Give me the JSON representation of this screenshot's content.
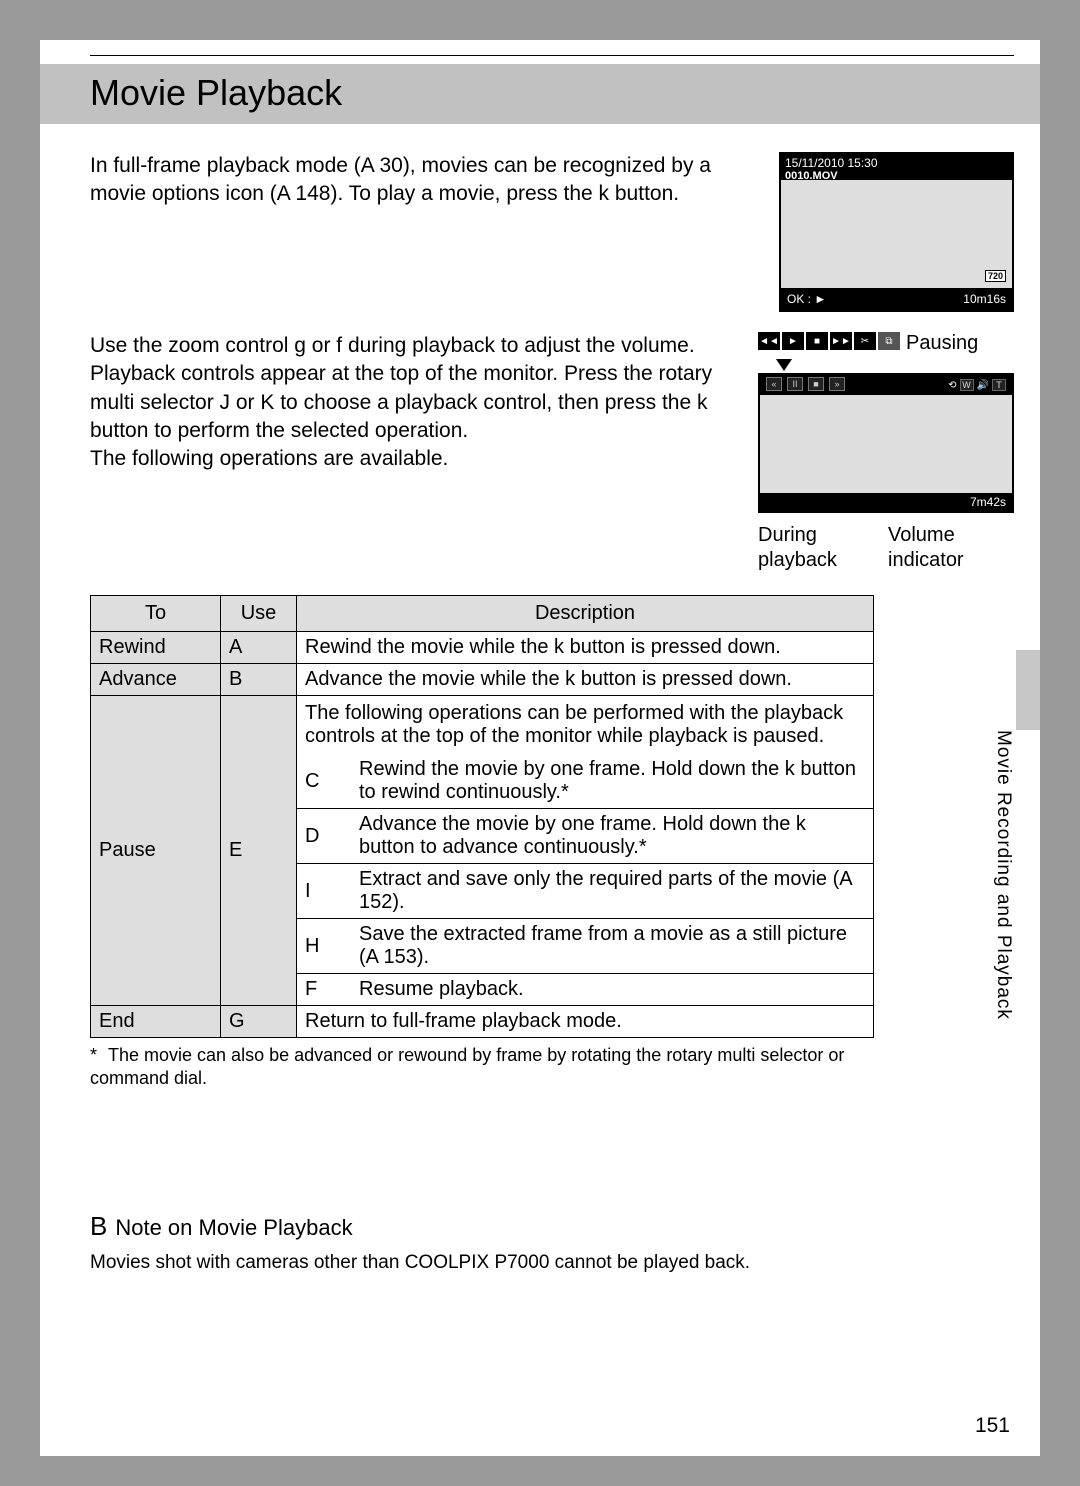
{
  "title": "Movie Playback",
  "intro": "In full-frame playback mode (A 30), movies can be recognized by a movie options icon (A 148). To play a movie, press the k button.",
  "screen1": {
    "date": "15/11/2010 15:30",
    "file": "0010.MOV",
    "badge": "720",
    "ok": "OK : ►",
    "duration": "10m16s"
  },
  "section2_text": "Use the zoom control g or f during playback to adjust the volume. Playback controls appear at the top of the monitor. Press the rotary multi selector J or K to choose a playback control, then press the k button to perform the selected operation.\nThe following operations are available.",
  "pausing_label": "Pausing",
  "screen2": {
    "time": "7m42s"
  },
  "captions": {
    "during": "During playback",
    "volume": "Volume indicator"
  },
  "table": {
    "headers": {
      "to": "To",
      "use": "Use",
      "desc": "Description"
    },
    "rows": {
      "rewind": {
        "to": "Rewind",
        "use": "A",
        "desc": "Rewind the movie while the k button is pressed down."
      },
      "advance": {
        "to": "Advance",
        "use": "B",
        "desc": "Advance the movie while the k button is pressed down."
      },
      "pause": {
        "to": "Pause",
        "use": "E",
        "lead": "The following operations can be performed with the playback controls at the top of the monitor while playback is paused.",
        "sub": [
          {
            "use": "C",
            "desc": "Rewind the movie by one frame. Hold down the k button to rewind continuously.*"
          },
          {
            "use": "D",
            "desc": "Advance the movie by one frame. Hold down the k button to advance continuously.*"
          },
          {
            "use": "I",
            "desc": "Extract and save only the required parts of the movie (A 152)."
          },
          {
            "use": "H",
            "desc": "Save the extracted frame from a movie as a still picture (A 153)."
          },
          {
            "use": "F",
            "desc": "Resume playback."
          }
        ]
      },
      "end": {
        "to": "End",
        "use": "G",
        "desc": "Return to full-frame playback mode."
      }
    }
  },
  "footnote": "The movie can also be advanced or rewound by frame by rotating the rotary multi selector or command dial.",
  "side_tab": "Movie Recording and Playback",
  "note": {
    "icon": "B",
    "head": "Note on Movie Playback",
    "body": "Movies shot with cameras other than COOLPIX P7000 cannot be played back."
  },
  "page_number": "151",
  "colors": {
    "page_bg": "#ffffff",
    "outer_bg": "#9a9a9a",
    "header_bg": "#c1c1c1",
    "cell_gray": "#dedede",
    "screen_bg": "#dedede",
    "black": "#000000"
  }
}
